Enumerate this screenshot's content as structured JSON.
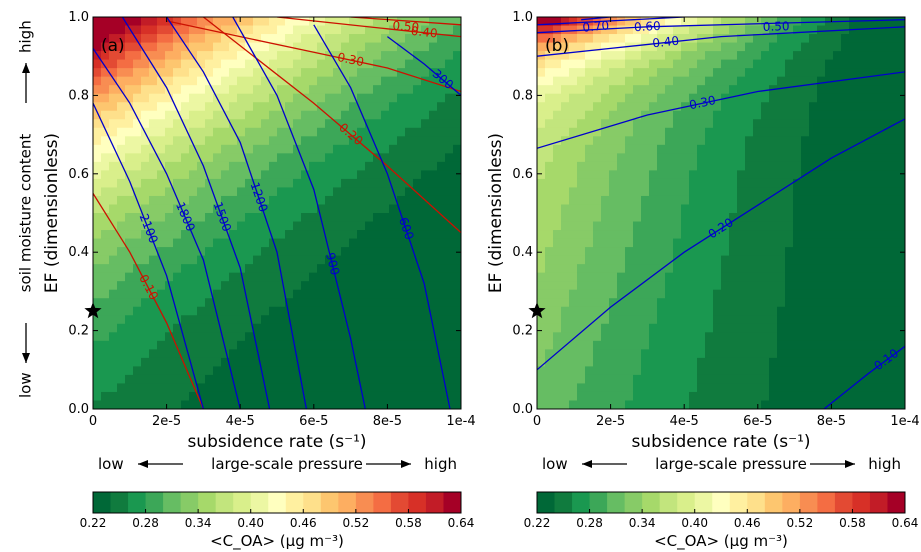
{
  "chart_data": [
    {
      "type": "heatmap",
      "panel_label": "(a)",
      "xlabel": "subsidence rate (s⁻¹)",
      "ylabel": "EF (dimensionless)",
      "side_label": {
        "low": "low",
        "middle": "soil moisture content",
        "high": "high"
      },
      "bottom_label": {
        "low": "low",
        "middle": "large-scale pressure",
        "high": "high"
      },
      "xlim": [
        0,
        0.0001
      ],
      "ylim": [
        0,
        1.0
      ],
      "x_ticks": [
        0,
        2e-05,
        4e-05,
        6e-05,
        8e-05,
        0.0001
      ],
      "x_tick_labels": [
        "0",
        "2e-5",
        "4e-5",
        "6e-5",
        "8e-5",
        "1e-4"
      ],
      "y_ticks": [
        0,
        0.2,
        0.4,
        0.6,
        0.8,
        1.0
      ],
      "y_tick_labels": [
        "0.0",
        "0.2",
        "0.4",
        "0.6",
        "0.8",
        "1.0"
      ],
      "fill_quantity": "<C_OA> (μg m⁻³)",
      "marker": {
        "x": 0,
        "y": 0.25,
        "symbol": "star"
      },
      "contours_blue": [
        {
          "label": "2100",
          "points": [
            [
              0,
              0.78
            ],
            [
              1e-05,
              0.58
            ],
            [
              2e-05,
              0.34
            ],
            [
              3e-05,
              0.0
            ]
          ]
        },
        {
          "label": "1800",
          "points": [
            [
              0,
              0.92
            ],
            [
              1e-05,
              0.78
            ],
            [
              2e-05,
              0.6
            ],
            [
              3e-05,
              0.38
            ],
            [
              4e-05,
              0.0
            ]
          ]
        },
        {
          "label": "1500",
          "points": [
            [
              8e-06,
              1.0
            ],
            [
              2e-05,
              0.82
            ],
            [
              3e-05,
              0.62
            ],
            [
              4e-05,
              0.36
            ],
            [
              4.8e-05,
              0.0
            ]
          ]
        },
        {
          "label": "1200",
          "points": [
            [
              2e-05,
              1.0
            ],
            [
              3e-05,
              0.86
            ],
            [
              4e-05,
              0.68
            ],
            [
              5e-05,
              0.4
            ],
            [
              5.8e-05,
              0.0
            ]
          ]
        },
        {
          "label": "900",
          "points": [
            [
              3.8e-05,
              1.0
            ],
            [
              5e-05,
              0.8
            ],
            [
              6e-05,
              0.56
            ],
            [
              7e-05,
              0.18
            ],
            [
              7.4e-05,
              0.0
            ]
          ]
        },
        {
          "label": "600",
          "points": [
            [
              6e-05,
              0.98
            ],
            [
              7e-05,
              0.82
            ],
            [
              8e-05,
              0.6
            ],
            [
              9e-05,
              0.32
            ],
            [
              9.7e-05,
              0.0
            ]
          ]
        },
        {
          "label": "300",
          "points": [
            [
              8e-05,
              0.95
            ],
            [
              9e-05,
              0.88
            ],
            [
              0.0001,
              0.8
            ]
          ]
        }
      ],
      "contours_red": [
        {
          "label": "0.10",
          "points": [
            [
              0,
              0.55
            ],
            [
              1e-05,
              0.4
            ],
            [
              2e-05,
              0.22
            ],
            [
              3e-05,
              0.0
            ]
          ]
        },
        {
          "label": "0.20",
          "points": [
            [
              3e-05,
              1.0
            ],
            [
              6e-05,
              0.78
            ],
            [
              8e-05,
              0.62
            ],
            [
              0.0001,
              0.45
            ]
          ]
        },
        {
          "label": "0.30",
          "points": [
            [
              2e-05,
              0.99
            ],
            [
              4e-05,
              0.95
            ],
            [
              6e-05,
              0.91
            ],
            [
              8e-05,
              0.87
            ],
            [
              0.0001,
              0.81
            ]
          ]
        },
        {
          "label": "0.40",
          "points": [
            [
              5e-05,
              1.0
            ],
            [
              8e-05,
              0.97
            ],
            [
              0.0001,
              0.95
            ]
          ]
        },
        {
          "label": "0.50",
          "points": [
            [
              7e-05,
              1.0
            ],
            [
              0.0001,
              0.98
            ]
          ]
        }
      ],
      "colorbar": {
        "vmin": 0.22,
        "vmax": 0.64,
        "ticks": [
          0.22,
          0.28,
          0.34,
          0.4,
          0.46,
          0.52,
          0.58,
          0.64
        ],
        "tick_labels": [
          "0.22",
          "0.28",
          "0.34",
          "0.40",
          "0.46",
          "0.52",
          "0.58",
          "0.64"
        ],
        "label": "<C_OA> (μg m⁻³)"
      }
    },
    {
      "type": "heatmap",
      "panel_label": "(b)",
      "xlabel": "subsidence rate (s⁻¹)",
      "ylabel": "EF (dimensionless)",
      "bottom_label": {
        "low": "low",
        "middle": "large-scale pressure",
        "high": "high"
      },
      "xlim": [
        0,
        0.0001
      ],
      "ylim": [
        0,
        1.0
      ],
      "x_ticks": [
        0,
        2e-05,
        4e-05,
        6e-05,
        8e-05,
        0.0001
      ],
      "x_tick_labels": [
        "0",
        "2e-5",
        "4e-5",
        "6e-5",
        "8e-5",
        "1e-4"
      ],
      "y_ticks": [
        0,
        0.2,
        0.4,
        0.6,
        0.8,
        1.0
      ],
      "y_tick_labels": [
        "0.0",
        "0.2",
        "0.4",
        "0.6",
        "0.8",
        "1.0"
      ],
      "fill_quantity": "<C_OA> (μg m⁻³)",
      "marker": {
        "x": 0,
        "y": 0.25,
        "symbol": "star"
      },
      "contours_blue": [
        {
          "label": "0.10",
          "points": [
            [
              7.8e-05,
              0.0
            ],
            [
              9e-05,
              0.09
            ],
            [
              0.0001,
              0.16
            ]
          ]
        },
        {
          "label": "0.20",
          "points": [
            [
              0,
              0.1
            ],
            [
              2e-05,
              0.26
            ],
            [
              4e-05,
              0.4
            ],
            [
              6e-05,
              0.52
            ],
            [
              8e-05,
              0.64
            ],
            [
              0.0001,
              0.74
            ]
          ]
        },
        {
          "label": "0.30",
          "points": [
            [
              0,
              0.665
            ],
            [
              3e-05,
              0.75
            ],
            [
              6e-05,
              0.81
            ],
            [
              0.0001,
              0.86
            ]
          ]
        },
        {
          "label": "0.40",
          "points": [
            [
              0,
              0.9
            ],
            [
              2e-05,
              0.92
            ],
            [
              5e-05,
              0.95
            ],
            [
              0.0001,
              0.975
            ]
          ]
        },
        {
          "label": "0.50",
          "points": [
            [
              0,
              0.96
            ],
            [
              3e-05,
              0.975
            ],
            [
              0.0001,
              0.993
            ]
          ]
        },
        {
          "label": "0.60",
          "points": [
            [
              0,
              0.98
            ],
            [
              2e-05,
              0.99
            ],
            [
              4e-05,
              1.0
            ]
          ]
        },
        {
          "label": "0.70",
          "points": [
            [
              1.2e-05,
              0.993
            ],
            [
              2e-05,
              1.0
            ]
          ]
        }
      ],
      "colorbar": {
        "vmin": 0.22,
        "vmax": 0.64,
        "ticks": [
          0.22,
          0.28,
          0.34,
          0.4,
          0.46,
          0.52,
          0.58,
          0.64
        ],
        "tick_labels": [
          "0.22",
          "0.28",
          "0.34",
          "0.40",
          "0.46",
          "0.52",
          "0.58",
          "0.64"
        ],
        "label": "<C_OA> (μg m⁻³)"
      }
    }
  ],
  "colormap": [
    "#006837",
    "#107b3e",
    "#1a9850",
    "#3ca758",
    "#66bd63",
    "#87cb67",
    "#a6d96a",
    "#c2e57d",
    "#d9ef8b",
    "#ecf7a3",
    "#ffffbf",
    "#fff0a0",
    "#fee08b",
    "#fdc66f",
    "#fdae61",
    "#f88d52",
    "#f46d43",
    "#e34a33",
    "#d73027",
    "#c21c27",
    "#a50026"
  ],
  "contour_colors": {
    "blue": "#0000cc",
    "red": "#cc1100"
  }
}
